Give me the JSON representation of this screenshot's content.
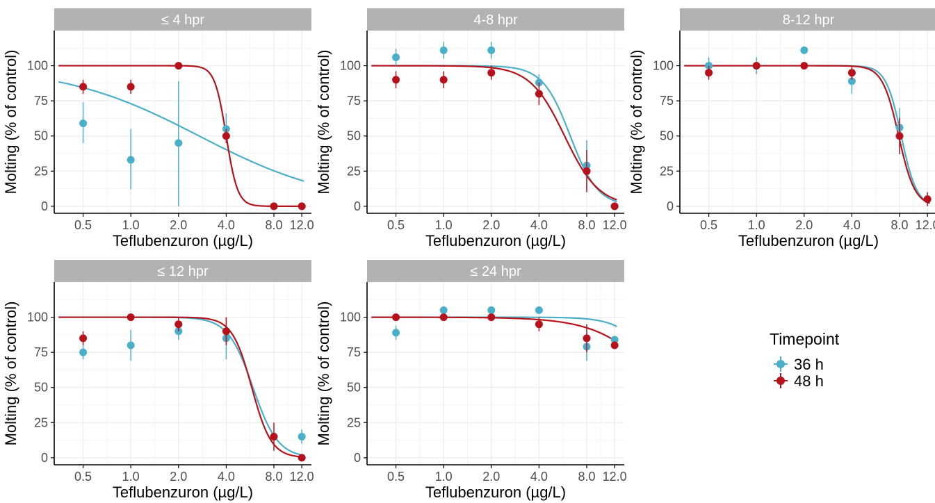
{
  "colors": {
    "36 h": "#4AAFC9",
    "48 h": "#B5121B",
    "strip_bg": "#B2B2B2",
    "strip_text": "#ffffff",
    "grid": "#EBEBEB",
    "axis": "#000000",
    "tick_text": "#4D4D4D"
  },
  "legend": {
    "title": "Timepoint",
    "items": [
      {
        "label": "36 h",
        "series": "36 h"
      },
      {
        "label": "48 h",
        "series": "48 h"
      }
    ]
  },
  "chart_data": [
    {
      "type": "scatter",
      "title": "≤ 4 hpr",
      "xlabel": "Teflubenzuron (µg/L)",
      "ylabel": "Molting (% of control)",
      "x_scale": "log",
      "xticks": [
        "0.5",
        "1.0",
        "2.0",
        "4.0",
        "8.0",
        "12.0"
      ],
      "yticks": [
        "0",
        "25",
        "50",
        "75",
        "100"
      ],
      "ylim": [
        -5,
        125
      ],
      "series": [
        {
          "name": "36 h",
          "points": [
            {
              "x": 0.5,
              "y": 59,
              "lo": 45,
              "hi": 74
            },
            {
              "x": 1.0,
              "y": 33,
              "lo": 12,
              "hi": 55
            },
            {
              "x": 2.0,
              "y": 45,
              "lo": 0,
              "hi": 89
            },
            {
              "x": 4.0,
              "y": 55,
              "lo": 45,
              "hi": 66
            },
            {
              "x": 8.0,
              "y": 0
            },
            {
              "x": 12.0,
              "y": 0
            }
          ],
          "fit": {
            "top": 100,
            "ec50": 2.7,
            "slope": 1.0
          }
        },
        {
          "name": "48 h",
          "points": [
            {
              "x": 0.5,
              "y": 85,
              "lo": 80,
              "hi": 90
            },
            {
              "x": 1.0,
              "y": 85,
              "lo": 80,
              "hi": 90
            },
            {
              "x": 2.0,
              "y": 100
            },
            {
              "x": 4.0,
              "y": 50,
              "lo": 45,
              "hi": 55
            },
            {
              "x": 8.0,
              "y": 0
            },
            {
              "x": 12.0,
              "y": 0
            }
          ],
          "fit": {
            "top": 100,
            "ec50": 4.0,
            "slope": 12
          }
        }
      ]
    },
    {
      "type": "scatter",
      "title": "4-8 hpr",
      "xlabel": "Teflubenzuron (µg/L)",
      "ylabel": "Molting (% of control)",
      "x_scale": "log",
      "xticks": [
        "0.5",
        "1.0",
        "2.0",
        "4.0",
        "8.0",
        "12.0"
      ],
      "yticks": [
        "0",
        "25",
        "50",
        "75",
        "100"
      ],
      "ylim": [
        -5,
        125
      ],
      "series": [
        {
          "name": "36 h",
          "points": [
            {
              "x": 0.5,
              "y": 106,
              "lo": 100,
              "hi": 112
            },
            {
              "x": 1.0,
              "y": 111,
              "lo": 105,
              "hi": 117
            },
            {
              "x": 2.0,
              "y": 111,
              "lo": 105,
              "hi": 117
            },
            {
              "x": 4.0,
              "y": 88,
              "lo": 82,
              "hi": 94
            },
            {
              "x": 8.0,
              "y": 29,
              "lo": 12,
              "hi": 47
            },
            {
              "x": 12.0,
              "y": 0
            }
          ],
          "fit": {
            "top": 100,
            "ec50": 6.3,
            "slope": 5.0
          }
        },
        {
          "name": "48 h",
          "points": [
            {
              "x": 0.5,
              "y": 90,
              "lo": 84,
              "hi": 96
            },
            {
              "x": 1.0,
              "y": 90,
              "lo": 84,
              "hi": 96
            },
            {
              "x": 2.0,
              "y": 95,
              "lo": 90,
              "hi": 100
            },
            {
              "x": 4.0,
              "y": 80,
              "lo": 72,
              "hi": 88
            },
            {
              "x": 8.0,
              "y": 25,
              "lo": 10,
              "hi": 40
            },
            {
              "x": 12.0,
              "y": 0
            }
          ],
          "fit": {
            "top": 100,
            "ec50": 5.8,
            "slope": 4.0
          }
        }
      ]
    },
    {
      "type": "scatter",
      "title": "8-12 hpr",
      "xlabel": "Teflubenzuron (µg/L)",
      "ylabel": "Molting (% of control)",
      "x_scale": "log",
      "xticks": [
        "0.5",
        "1.0",
        "2.0",
        "4.0",
        "8.0",
        "12.0"
      ],
      "yticks": [
        "0",
        "25",
        "50",
        "75",
        "100"
      ],
      "ylim": [
        -5,
        125
      ],
      "series": [
        {
          "name": "36 h",
          "points": [
            {
              "x": 0.5,
              "y": 100,
              "lo": 94,
              "hi": 106
            },
            {
              "x": 1.0,
              "y": 100,
              "lo": 94,
              "hi": 106
            },
            {
              "x": 2.0,
              "y": 111
            },
            {
              "x": 4.0,
              "y": 89,
              "lo": 80,
              "hi": 97
            },
            {
              "x": 8.0,
              "y": 56,
              "lo": 42,
              "hi": 70
            },
            {
              "x": 12.0,
              "y": 5
            }
          ],
          "fit": {
            "top": 100,
            "ec50": 8.2,
            "slope": 9.0
          }
        },
        {
          "name": "48 h",
          "points": [
            {
              "x": 0.5,
              "y": 95,
              "lo": 90,
              "hi": 100
            },
            {
              "x": 1.0,
              "y": 100
            },
            {
              "x": 2.0,
              "y": 100
            },
            {
              "x": 4.0,
              "y": 95,
              "lo": 90,
              "hi": 100
            },
            {
              "x": 8.0,
              "y": 50,
              "lo": 37,
              "hi": 63
            },
            {
              "x": 12.0,
              "y": 5,
              "lo": 0,
              "hi": 10
            }
          ],
          "fit": {
            "top": 100,
            "ec50": 7.9,
            "slope": 8.5
          }
        }
      ]
    },
    {
      "type": "scatter",
      "title": "≤ 12 hpr",
      "xlabel": "Teflubenzuron (µg/L)",
      "ylabel": "Molting (% of control)",
      "x_scale": "log",
      "xticks": [
        "0.5",
        "1.0",
        "2.0",
        "4.0",
        "8.0",
        "12.0"
      ],
      "yticks": [
        "0",
        "25",
        "50",
        "75",
        "100"
      ],
      "ylim": [
        -5,
        125
      ],
      "series": [
        {
          "name": "36 h",
          "points": [
            {
              "x": 0.5,
              "y": 75,
              "lo": 70,
              "hi": 80
            },
            {
              "x": 1.0,
              "y": 80,
              "lo": 69,
              "hi": 91
            },
            {
              "x": 2.0,
              "y": 90,
              "lo": 84,
              "hi": 96
            },
            {
              "x": 4.0,
              "y": 85,
              "lo": 70,
              "hi": 100
            },
            {
              "x": 8.0,
              "y": 15
            },
            {
              "x": 12.0,
              "y": 15,
              "lo": 10,
              "hi": 20
            }
          ],
          "fit": {
            "top": 100,
            "ec50": 5.9,
            "slope": 5.5
          }
        },
        {
          "name": "48 h",
          "points": [
            {
              "x": 0.5,
              "y": 85,
              "lo": 80,
              "hi": 90
            },
            {
              "x": 1.0,
              "y": 100
            },
            {
              "x": 2.0,
              "y": 95,
              "lo": 90,
              "hi": 100
            },
            {
              "x": 4.0,
              "y": 90,
              "lo": 80,
              "hi": 100
            },
            {
              "x": 8.0,
              "y": 15,
              "lo": 5,
              "hi": 25
            },
            {
              "x": 12.0,
              "y": 0
            }
          ],
          "fit": {
            "top": 100,
            "ec50": 5.8,
            "slope": 7.0
          }
        }
      ]
    },
    {
      "type": "scatter",
      "title": "≤ 24 hpr",
      "xlabel": "Teflubenzuron (µg/L)",
      "ylabel": "Molting (% of control)",
      "x_scale": "log",
      "xticks": [
        "0.5",
        "1.0",
        "2.0",
        "4.0",
        "8.0",
        "12.0"
      ],
      "yticks": [
        "0",
        "25",
        "50",
        "75",
        "100"
      ],
      "ylim": [
        -5,
        125
      ],
      "series": [
        {
          "name": "36 h",
          "points": [
            {
              "x": 0.5,
              "y": 89,
              "lo": 84,
              "hi": 94
            },
            {
              "x": 1.0,
              "y": 105
            },
            {
              "x": 2.0,
              "y": 105
            },
            {
              "x": 4.0,
              "y": 105
            },
            {
              "x": 8.0,
              "y": 79,
              "lo": 69,
              "hi": 89
            },
            {
              "x": 12.0,
              "y": 84
            }
          ],
          "fit": {
            "top": 100,
            "ec50": 24,
            "slope": 4.0
          }
        },
        {
          "name": "48 h",
          "points": [
            {
              "x": 0.5,
              "y": 100
            },
            {
              "x": 1.0,
              "y": 100
            },
            {
              "x": 2.0,
              "y": 100
            },
            {
              "x": 4.0,
              "y": 95,
              "lo": 90,
              "hi": 100
            },
            {
              "x": 8.0,
              "y": 85,
              "lo": 75,
              "hi": 95
            },
            {
              "x": 12.0,
              "y": 80
            }
          ],
          "fit": {
            "top": 100,
            "ec50": 25,
            "slope": 2.2
          }
        }
      ]
    }
  ]
}
